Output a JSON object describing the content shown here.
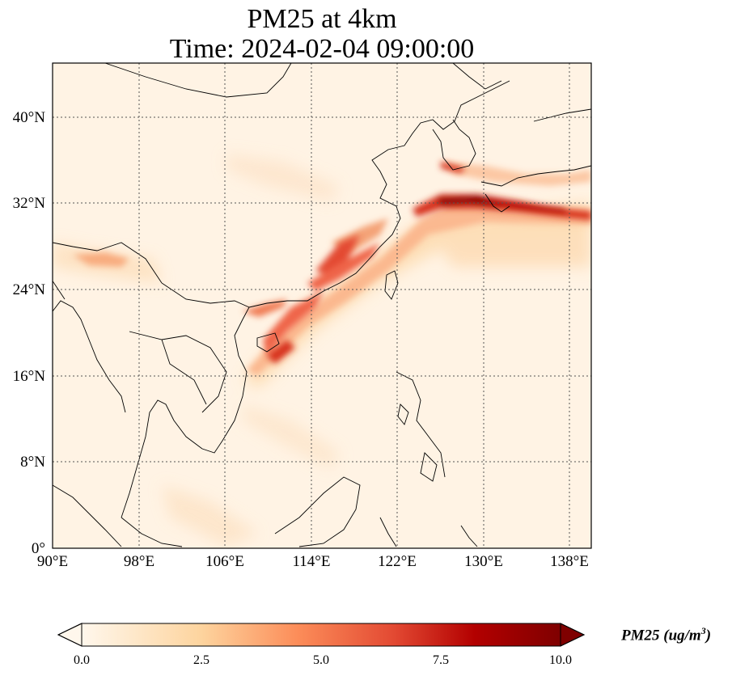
{
  "title": {
    "line1": "PM25 at 4km",
    "line2": "Time: 2024-02-04 09:00:00"
  },
  "map": {
    "projection": "PlateCarree",
    "lon_range": [
      90,
      140
    ],
    "lat_range": [
      0,
      45
    ],
    "gridlines": true,
    "x_ticks": [
      "90°E",
      "98°E",
      "106°E",
      "114°E",
      "122°E",
      "130°E",
      "138°E"
    ],
    "y_ticks": [
      "0°",
      "8°N",
      "16°N",
      "24°N",
      "32°N",
      "40°N"
    ],
    "colormap": "OrRd",
    "colors": {
      "low": "#fff7ec",
      "mid": "#fdd49e",
      "high": "#d7301f",
      "max": "#7f0000",
      "coast": "#000000",
      "grid": "#555555"
    }
  },
  "colorbar": {
    "ticks": [
      "0.0",
      "2.5",
      "5.0",
      "7.5",
      "10.0"
    ],
    "range": [
      0,
      10
    ],
    "extend": "both",
    "label_text": "PM25 (ug/m",
    "label_sup": "3",
    "label_close": ")"
  }
}
